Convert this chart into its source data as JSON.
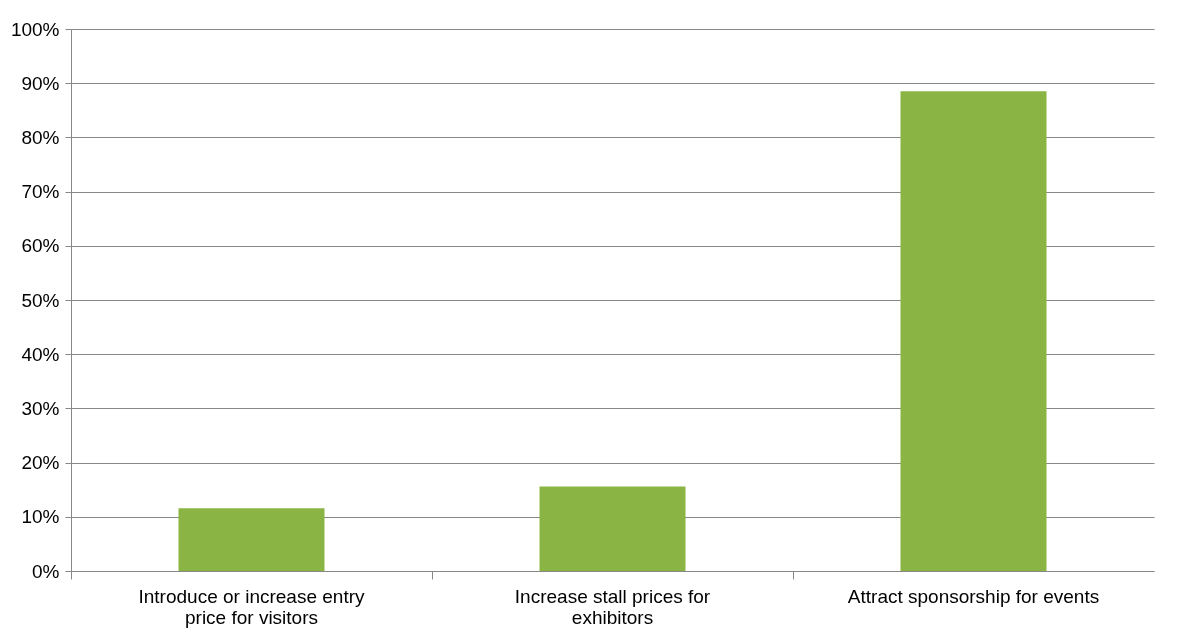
{
  "chart_data": {
    "type": "bar",
    "categories": [
      "Introduce or increase entry price for visitors",
      "Increase stall prices for exhibitors",
      "Attract sponsorship for events"
    ],
    "values": [
      11.6,
      15.6,
      88.5
    ],
    "color": "#8ab545",
    "ylim": [
      0,
      100
    ],
    "yticks": [
      {
        "value": 0,
        "label": "0%"
      },
      {
        "value": 10,
        "label": "10%"
      },
      {
        "value": 20,
        "label": "20%"
      },
      {
        "value": 30,
        "label": "30%"
      },
      {
        "value": 40,
        "label": "40%"
      },
      {
        "value": 50,
        "label": "50%"
      },
      {
        "value": 60,
        "label": "60%"
      },
      {
        "value": 70,
        "label": "70%"
      },
      {
        "value": 80,
        "label": "80%"
      },
      {
        "value": 90,
        "label": "90%"
      },
      {
        "value": 100,
        "label": "100%"
      }
    ],
    "grid": "y"
  }
}
